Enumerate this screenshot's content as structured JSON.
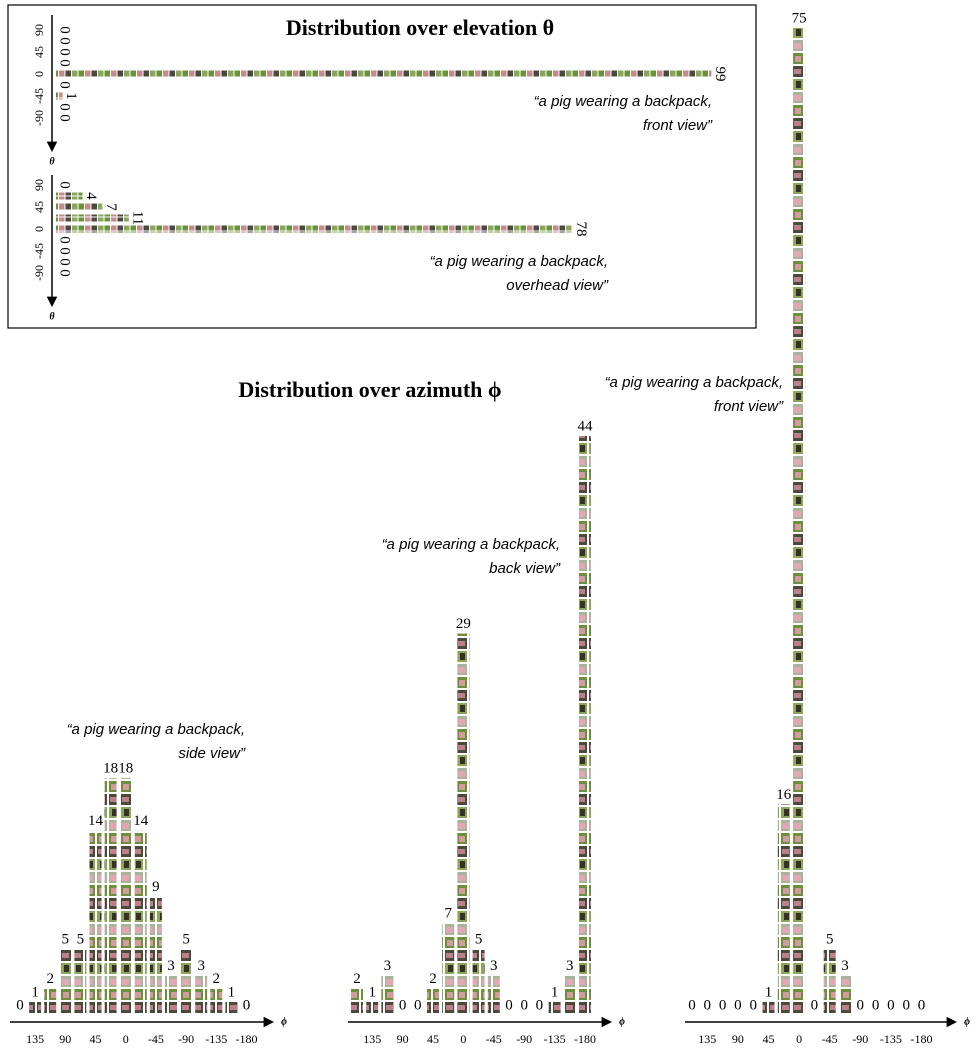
{
  "chart_data": [
    {
      "type": "bar",
      "orientation": "horizontal",
      "title": "Distribution over elevation θ",
      "caption": [
        "“a pig wearing a backpack,",
        "front view”"
      ],
      "axis_label": "θ",
      "categories": [
        "90",
        null,
        "45",
        null,
        "0",
        null,
        "-45",
        null,
        "-90"
      ],
      "values": [
        0,
        0,
        0,
        0,
        99,
        0,
        1,
        0,
        0
      ],
      "xlim": [
        0,
        100
      ]
    },
    {
      "type": "bar",
      "orientation": "horizontal",
      "caption": [
        "“a pig wearing a backpack,",
        "overhead view”"
      ],
      "axis_label": "θ",
      "categories": [
        "90",
        null,
        "45",
        null,
        "0",
        null,
        "-45",
        null,
        "-90"
      ],
      "values": [
        0,
        4,
        7,
        11,
        78,
        0,
        0,
        0,
        0
      ],
      "xlim": [
        0,
        100
      ]
    },
    {
      "type": "bar",
      "orientation": "vertical",
      "title": "Distribution over azimuth ϕ",
      "caption": [
        "“a pig wearing a backpack,",
        "side view”"
      ],
      "axis_label": "ϕ",
      "categories": [
        null,
        "135",
        null,
        "90",
        null,
        "45",
        null,
        "0",
        null,
        "-45",
        null,
        "-90",
        null,
        "-135",
        null,
        "-180"
      ],
      "values": [
        0,
        1,
        2,
        5,
        5,
        14,
        18,
        18,
        14,
        9,
        3,
        5,
        3,
        2,
        1,
        0
      ],
      "ylim": [
        0,
        75
      ]
    },
    {
      "type": "bar",
      "orientation": "vertical",
      "caption": [
        "“a pig wearing a backpack,",
        "back view”"
      ],
      "axis_label": "ϕ",
      "categories": [
        null,
        "135",
        null,
        "90",
        null,
        "45",
        null,
        "0",
        null,
        "-45",
        null,
        "-90",
        null,
        "-135",
        null,
        "-180"
      ],
      "values": [
        2,
        1,
        3,
        0,
        0,
        2,
        7,
        29,
        5,
        3,
        0,
        0,
        0,
        1,
        3,
        44
      ],
      "ylim": [
        0,
        75
      ]
    },
    {
      "type": "bar",
      "orientation": "vertical",
      "caption": [
        "“a pig wearing a backpack,",
        "front view”"
      ],
      "axis_label": "ϕ",
      "categories": [
        null,
        "135",
        null,
        "90",
        null,
        "45",
        null,
        "0",
        null,
        "-45",
        null,
        "-90",
        null,
        "-135",
        null,
        "-180"
      ],
      "values": [
        0,
        0,
        0,
        0,
        0,
        1,
        16,
        75,
        0,
        5,
        3,
        0,
        0,
        0,
        0,
        0
      ],
      "ylim": [
        0,
        75
      ]
    }
  ]
}
